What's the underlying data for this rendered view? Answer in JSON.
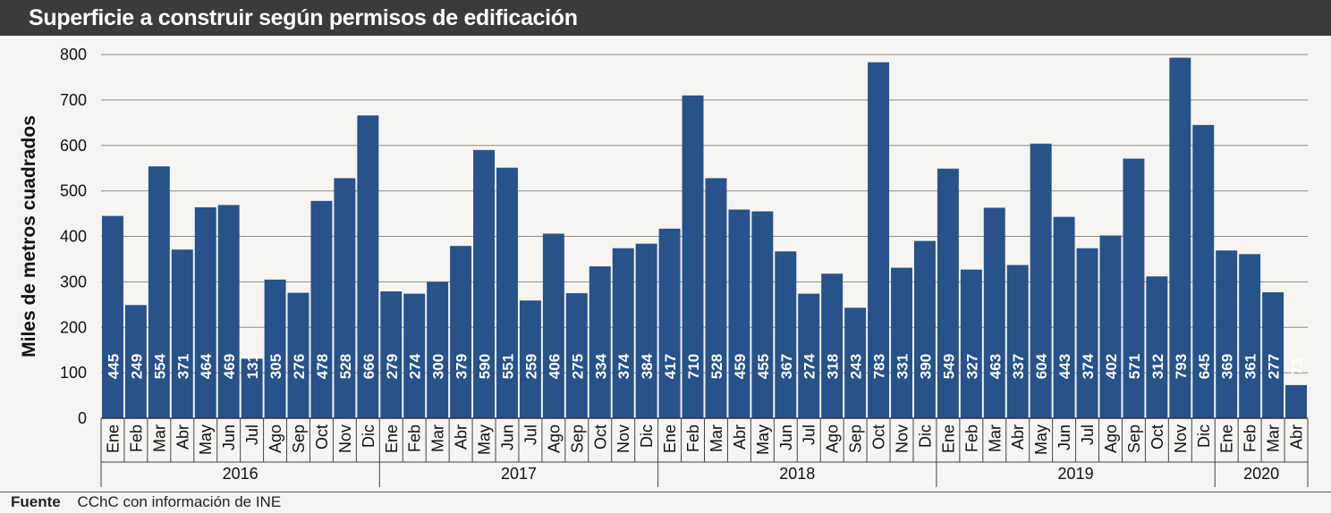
{
  "chart_data": {
    "type": "bar",
    "title": "Superficie a construir según permisos de edificación",
    "ylabel": "Miles de metros cuadrados",
    "xlabel": "",
    "ylim": [
      0,
      800
    ],
    "yticks": [
      0,
      100,
      200,
      300,
      400,
      500,
      600,
      700,
      800
    ],
    "grid": true,
    "bar_color": "#27528a",
    "groups": [
      {
        "year": "2016",
        "months": [
          "Ene",
          "Feb",
          "Mar",
          "Abr",
          "May",
          "Jun",
          "Jul",
          "Ago",
          "Sep",
          "Oct",
          "Nov",
          "Dic"
        ],
        "values": [
          445,
          249,
          554,
          371,
          464,
          469,
          131,
          305,
          276,
          478,
          528,
          666
        ]
      },
      {
        "year": "2017",
        "months": [
          "Ene",
          "Feb",
          "Mar",
          "Abr",
          "May",
          "Jun",
          "Jul",
          "Ago",
          "Sep",
          "Oct",
          "Nov",
          "Dic"
        ],
        "values": [
          279,
          274,
          300,
          379,
          590,
          551,
          259,
          406,
          275,
          334,
          374,
          384
        ]
      },
      {
        "year": "2018",
        "months": [
          "Ene",
          "Feb",
          "Mar",
          "Abr",
          "May",
          "Jun",
          "Jul",
          "Ago",
          "Sep",
          "Oct",
          "Nov",
          "Dic"
        ],
        "values": [
          417,
          710,
          528,
          459,
          455,
          367,
          274,
          318,
          243,
          783,
          331,
          390
        ]
      },
      {
        "year": "2019",
        "months": [
          "Ene",
          "Feb",
          "Mar",
          "Abr",
          "May",
          "Jun",
          "Jul",
          "Ago",
          "Sep",
          "Oct",
          "Nov",
          "Dic"
        ],
        "values": [
          549,
          327,
          463,
          337,
          604,
          443,
          374,
          402,
          571,
          312,
          793,
          645
        ]
      },
      {
        "year": "2020",
        "months": [
          "Ene",
          "Feb",
          "Mar",
          "Abr"
        ],
        "values": [
          369,
          361,
          277,
          73
        ]
      }
    ]
  },
  "footer": {
    "label": "Fuente",
    "text": "CChC con información de INE"
  }
}
